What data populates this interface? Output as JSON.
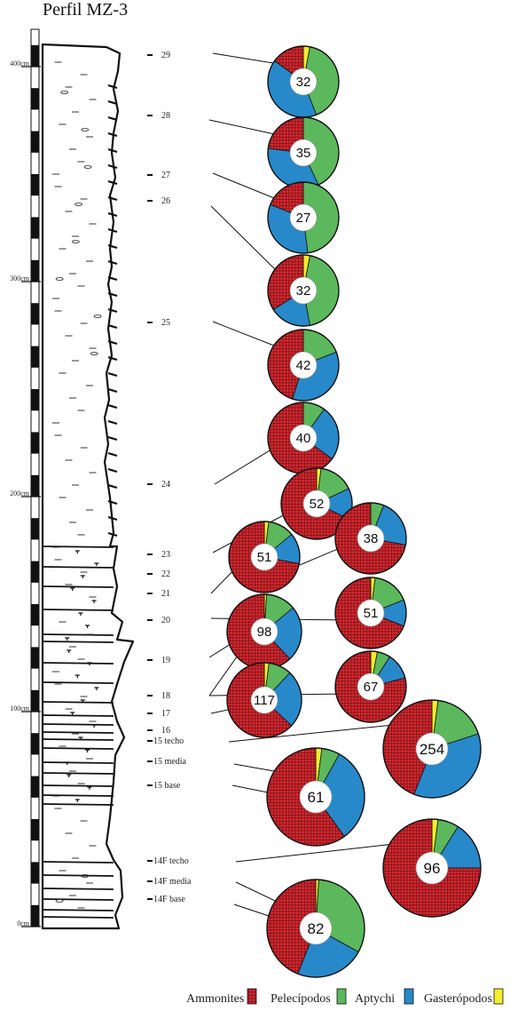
{
  "title": "Perfil MZ-3",
  "colors": {
    "Ammonites": "#d42a32",
    "Aptychi": "#5cb85c",
    "Gasteropodos": "#f2ee2c",
    "Pelecipodos": "#2789c9",
    "pattern_lines": "#7a0f14",
    "outline": "#111111",
    "background": "#ffffff"
  },
  "scale": {
    "unit": "cm",
    "ticks": [
      {
        "value": 0,
        "label": "0cm"
      },
      {
        "value": 100,
        "label": "100cm"
      },
      {
        "value": 200,
        "label": "200cm"
      },
      {
        "value": 300,
        "label": "300cm"
      },
      {
        "value": 400,
        "label": "400cm"
      }
    ]
  },
  "levels": [
    "29",
    "28",
    "27",
    "26",
    "25",
    "24",
    "23",
    "22",
    "21",
    "20",
    "19",
    "18",
    "17",
    "16",
    "15 techo",
    "15 media",
    "15 base",
    "14F techo",
    "14F media",
    "14F base"
  ],
  "lithology_symbols": [
    "limestone-beds",
    "marl-lenses",
    "nodules",
    "chert-marks"
  ],
  "legend": [
    {
      "label": "Ammonites",
      "color_key": "Ammonites"
    },
    {
      "label": "Pelecípodos",
      "color_key": "Aptychi"
    },
    {
      "label": "Aptychi",
      "color_key": "Pelecipodos"
    },
    {
      "label": "Gasterópodos",
      "color_key": "Gasteropodos"
    }
  ],
  "chart_data": {
    "type": "pie",
    "order": [
      "Gasteropodos",
      "Aptychi",
      "Pelecipodos",
      "Ammonites"
    ],
    "pies": [
      {
        "level": "29",
        "total": 32,
        "fractions": {
          "Gasteropodos": 0.03,
          "Aptychi": 0.41,
          "Pelecipodos": 0.41,
          "Ammonites": 0.15
        }
      },
      {
        "level": "28",
        "total": 35,
        "fractions": {
          "Gasteropodos": 0.0,
          "Aptychi": 0.43,
          "Pelecipodos": 0.34,
          "Ammonites": 0.23
        }
      },
      {
        "level": "27",
        "total": 27,
        "fractions": {
          "Gasteropodos": 0.0,
          "Aptychi": 0.48,
          "Pelecipodos": 0.33,
          "Ammonites": 0.19
        }
      },
      {
        "level": "26",
        "total": 32,
        "fractions": {
          "Gasteropodos": 0.03,
          "Aptychi": 0.44,
          "Pelecipodos": 0.19,
          "Ammonites": 0.34
        }
      },
      {
        "level": "25",
        "total": 42,
        "fractions": {
          "Gasteropodos": 0.0,
          "Aptychi": 0.19,
          "Pelecipodos": 0.36,
          "Ammonites": 0.45
        }
      },
      {
        "level": "24",
        "total": 40,
        "fractions": {
          "Gasteropodos": 0.0,
          "Aptychi": 0.1,
          "Pelecipodos": 0.25,
          "Ammonites": 0.65
        }
      },
      {
        "level": "23-upper",
        "total": 52,
        "fractions": {
          "Gasteropodos": 0.02,
          "Aptychi": 0.16,
          "Pelecipodos": 0.14,
          "Ammonites": 0.68
        }
      },
      {
        "level": "22",
        "total": 38,
        "fractions": {
          "Gasteropodos": 0.0,
          "Aptychi": 0.06,
          "Pelecipodos": 0.22,
          "Ammonites": 0.72
        }
      },
      {
        "level": "23",
        "total": 51,
        "fractions": {
          "Gasteropodos": 0.02,
          "Aptychi": 0.12,
          "Pelecipodos": 0.14,
          "Ammonites": 0.72
        }
      },
      {
        "level": "20",
        "total": 51,
        "fractions": {
          "Gasteropodos": 0.02,
          "Aptychi": 0.17,
          "Pelecipodos": 0.12,
          "Ammonites": 0.69
        }
      },
      {
        "level": "19",
        "total": 98,
        "fractions": {
          "Gasteropodos": 0.01,
          "Aptychi": 0.13,
          "Pelecipodos": 0.24,
          "Ammonites": 0.62
        }
      },
      {
        "level": "17",
        "total": 67,
        "fractions": {
          "Gasteropodos": 0.03,
          "Aptychi": 0.06,
          "Pelecipodos": 0.12,
          "Ammonites": 0.79
        }
      },
      {
        "level": "16",
        "total": 117,
        "fractions": {
          "Gasteropodos": 0.02,
          "Aptychi": 0.1,
          "Pelecipodos": 0.25,
          "Ammonites": 0.63
        }
      },
      {
        "level": "15 techo",
        "total": 254,
        "fractions": {
          "Gasteropodos": 0.02,
          "Aptychi": 0.18,
          "Pelecipodos": 0.36,
          "Ammonites": 0.44
        }
      },
      {
        "level": "15 media",
        "total": 61,
        "fractions": {
          "Gasteropodos": 0.02,
          "Aptychi": 0.06,
          "Pelecipodos": 0.32,
          "Ammonites": 0.6
        }
      },
      {
        "level": "14F techo",
        "total": 96,
        "fractions": {
          "Gasteropodos": 0.02,
          "Aptychi": 0.07,
          "Pelecipodos": 0.16,
          "Ammonites": 0.75
        }
      },
      {
        "level": "14F base",
        "total": 82,
        "fractions": {
          "Gasteropodos": 0.01,
          "Aptychi": 0.32,
          "Pelecipodos": 0.23,
          "Ammonites": 0.44
        }
      }
    ]
  }
}
